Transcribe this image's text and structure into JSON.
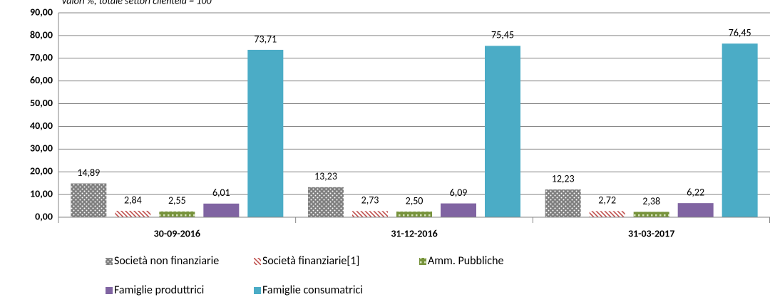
{
  "chart_data": {
    "type": "bar",
    "subtitle": "Valori %, totale settori clientela = 100",
    "categories": [
      "30-09-2016",
      "31-12-2016",
      "31-03-2017"
    ],
    "series": [
      {
        "name": "Società non finanziarie",
        "color": "#7f7f7f",
        "pattern": "dots",
        "values": [
          14.89,
          13.23,
          12.23
        ],
        "value_labels": [
          "14,89",
          "13,23",
          "12,23"
        ]
      },
      {
        "name": "Società finanziarie[1]",
        "color": "#c0504d",
        "pattern": "hatch",
        "values": [
          2.84,
          2.73,
          2.72
        ],
        "value_labels": [
          "2,84",
          "2,73",
          "2,72"
        ]
      },
      {
        "name": "Amm. Pubbliche",
        "color": "#77933c",
        "pattern": "grid",
        "values": [
          2.55,
          2.5,
          2.38
        ],
        "value_labels": [
          "2,55",
          "2,50",
          "2,38"
        ]
      },
      {
        "name": "Famiglie produttrici",
        "color": "#8064a2",
        "values": [
          6.01,
          6.09,
          6.22
        ],
        "value_labels": [
          "6,01",
          "6,09",
          "6,22"
        ]
      },
      {
        "name": "Famiglie consumatrici",
        "color": "#4bacc6",
        "values": [
          73.71,
          75.45,
          76.45
        ],
        "value_labels": [
          "73,71",
          "75,45",
          "76,45"
        ]
      }
    ],
    "ylim": [
      0,
      90
    ],
    "yticks": [
      {
        "value": 0,
        "label": "0,00"
      },
      {
        "value": 10,
        "label": "10,00"
      },
      {
        "value": 20,
        "label": "20,00"
      },
      {
        "value": 30,
        "label": "30,00"
      },
      {
        "value": 40,
        "label": "40,00"
      },
      {
        "value": 50,
        "label": "50,00"
      },
      {
        "value": 60,
        "label": "60,00"
      },
      {
        "value": 70,
        "label": "70,00"
      },
      {
        "value": 80,
        "label": "80,00"
      },
      {
        "value": 90,
        "label": "90,00"
      }
    ],
    "grid": true,
    "legend": "bottom"
  }
}
